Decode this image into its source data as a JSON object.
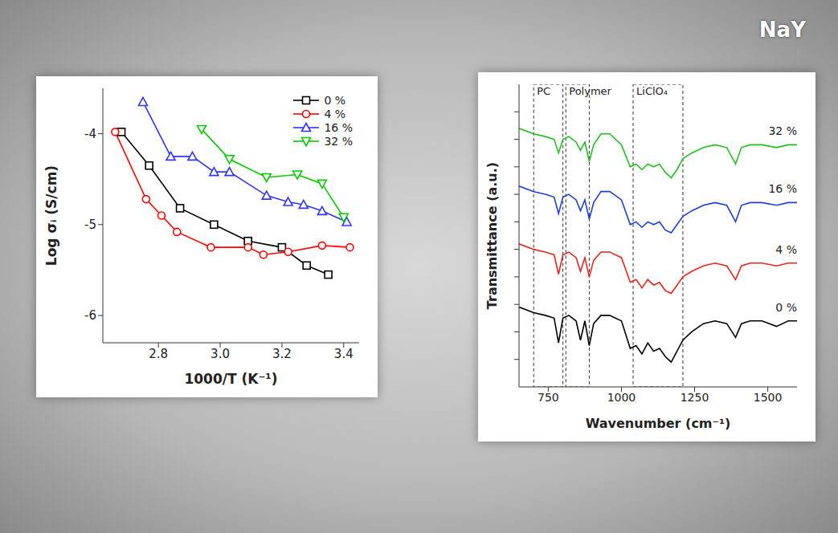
{
  "chart_data": [
    {
      "type": "line",
      "x_label": "1000/T (K⁻¹)",
      "y_label": "Log σᵢ (S/cm)",
      "xlim": [
        2.62,
        3.45
      ],
      "xticks": [
        2.8,
        {
          "value": 3.0,
          "label": "3.0"
        },
        3.2,
        3.4
      ],
      "ylim": [
        -6.3,
        -3.5
      ],
      "yticks": [
        -6,
        -5,
        -4
      ],
      "legend": "upper right",
      "series": [
        {
          "name": "0 %",
          "color": "#000000",
          "marker": "square",
          "x": [
            2.68,
            2.77,
            2.87,
            2.98,
            3.09,
            3.2,
            3.28,
            3.35
          ],
          "values": [
            -3.98,
            -4.35,
            -4.82,
            -5.0,
            -5.18,
            -5.25,
            -5.45,
            -5.55
          ]
        },
        {
          "name": "4 %",
          "color": "#ff0000",
          "marker": "circle",
          "x": [
            2.66,
            2.76,
            2.81,
            2.86,
            2.97,
            3.09,
            3.14,
            3.22,
            3.33,
            3.42
          ],
          "values": [
            -3.98,
            -4.72,
            -4.9,
            -5.08,
            -5.25,
            -5.25,
            -5.33,
            -5.3,
            -5.23,
            -5.25
          ]
        },
        {
          "name": "16 %",
          "color": "#3333ff",
          "marker": "triangle",
          "x": [
            2.75,
            2.84,
            2.91,
            2.98,
            3.03,
            3.15,
            3.22,
            3.27,
            3.33,
            3.41
          ],
          "values": [
            -3.65,
            -4.25,
            -4.25,
            -4.42,
            -4.42,
            -4.68,
            -4.75,
            -4.78,
            -4.85,
            -4.97
          ]
        },
        {
          "name": "32 %",
          "color": "#00cc00",
          "marker": "triangle-down",
          "x": [
            2.94,
            3.03,
            3.15,
            3.25,
            3.33,
            3.4
          ],
          "values": [
            -3.95,
            -4.28,
            -4.48,
            -4.45,
            -4.55,
            -4.92
          ]
        }
      ]
    },
    {
      "type": "line",
      "x_label": "Wavenumber (cm⁻¹)",
      "y_label": "Transmittance (a.u.)",
      "xlim": [
        650,
        1600
      ],
      "xticks": [
        750,
        1000,
        1250,
        1500
      ],
      "ylim": [
        0,
        11
      ],
      "yticks": [
        1,
        2,
        3,
        4,
        5,
        6,
        7,
        8,
        9,
        10
      ],
      "tick_labels": "x",
      "legend": "inline",
      "regions": [
        {
          "label": "PC",
          "x": [
            700,
            800
          ]
        },
        {
          "label": "Polymer",
          "x": [
            810,
            890
          ]
        },
        {
          "label": "LiClO₄",
          "x": [
            1040,
            1210
          ]
        }
      ],
      "x": [
        650,
        700,
        740,
        770,
        785,
        800,
        820,
        845,
        860,
        875,
        890,
        905,
        930,
        960,
        1000,
        1030,
        1050,
        1070,
        1090,
        1110,
        1130,
        1150,
        1170,
        1190,
        1210,
        1240,
        1280,
        1320,
        1360,
        1390,
        1410,
        1440,
        1480,
        1530,
        1570,
        1600
      ],
      "series": [
        {
          "name": "0 %",
          "color": "#000000",
          "values": [
            2.9,
            2.7,
            2.6,
            2.5,
            1.6,
            2.5,
            2.6,
            2.4,
            1.7,
            2.4,
            1.5,
            2.3,
            2.6,
            2.6,
            2.4,
            1.4,
            1.5,
            1.2,
            1.6,
            1.3,
            1.4,
            1.1,
            0.9,
            1.3,
            1.7,
            2.0,
            2.3,
            2.4,
            2.3,
            1.8,
            2.3,
            2.4,
            2.4,
            2.2,
            2.4,
            2.4
          ]
        },
        {
          "name": "4 %",
          "color": "#e8251f",
          "values": [
            5.2,
            5.0,
            4.9,
            4.8,
            4.1,
            4.8,
            4.9,
            4.7,
            4.2,
            4.7,
            4.0,
            4.6,
            4.9,
            4.9,
            4.7,
            3.8,
            3.9,
            3.6,
            3.9,
            3.7,
            3.8,
            3.5,
            3.4,
            3.7,
            4.0,
            4.2,
            4.4,
            4.5,
            4.4,
            3.9,
            4.4,
            4.5,
            4.5,
            4.4,
            4.5,
            4.5
          ]
        },
        {
          "name": "16 %",
          "color": "#1f3fd6",
          "values": [
            7.3,
            7.1,
            7.0,
            6.9,
            6.3,
            6.9,
            7.0,
            6.8,
            6.4,
            6.8,
            6.1,
            6.7,
            7.1,
            7.1,
            6.8,
            5.9,
            6.0,
            5.8,
            6.0,
            5.9,
            6.0,
            5.7,
            5.6,
            5.9,
            6.2,
            6.4,
            6.6,
            6.7,
            6.6,
            6.0,
            6.6,
            6.7,
            6.7,
            6.6,
            6.7,
            6.7
          ]
        },
        {
          "name": "32 %",
          "color": "#20c020",
          "values": [
            9.4,
            9.2,
            9.1,
            9.0,
            8.5,
            9.0,
            9.1,
            8.9,
            8.6,
            8.9,
            8.2,
            8.8,
            9.2,
            9.2,
            8.8,
            8.0,
            8.1,
            7.9,
            8.1,
            8.0,
            8.1,
            7.8,
            7.6,
            7.9,
            8.3,
            8.5,
            8.7,
            8.8,
            8.7,
            8.1,
            8.7,
            8.8,
            8.8,
            8.7,
            8.8,
            8.8
          ]
        }
      ]
    }
  ],
  "annotations": [
    "NaY"
  ]
}
